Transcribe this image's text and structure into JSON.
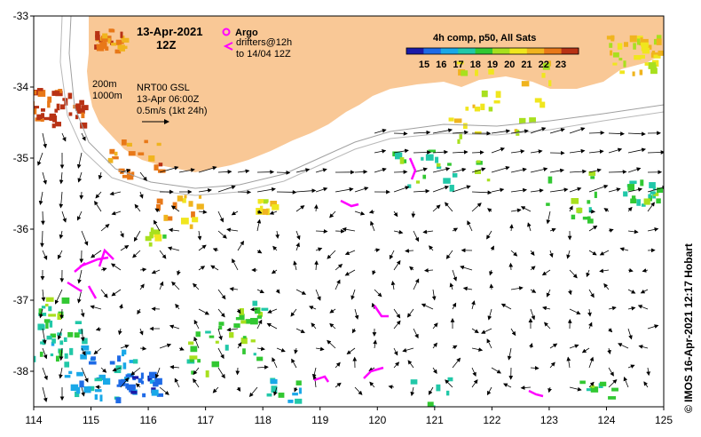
{
  "map": {
    "date_line1": "13-Apr-2021",
    "date_line2": "12Z",
    "product_line1": "NRT00 GSL",
    "product_line2": "13-Apr 06:00Z",
    "product_line3": "0.5m/s (1kt 24h)",
    "contour_200": "200m",
    "contour_1000": "1000m",
    "legend_argo": "Argo",
    "legend_drifters_line1": "drifters@12h",
    "legend_drifters_line2": "to 14/04 12Z",
    "credit": "© IMOS 16-Apr-2021 12:17 Hobart",
    "colorbar_title": "4h comp, p50, All Sats",
    "colorbar_ticks": [
      "15",
      "16",
      "17",
      "18",
      "19",
      "20",
      "21",
      "22",
      "23"
    ],
    "colorbar_colors": [
      "#1a1aa8",
      "#1e6ae6",
      "#19a8e8",
      "#21c8a8",
      "#32c832",
      "#a8e01e",
      "#f0e61e",
      "#f0b41e",
      "#e87818",
      "#b83214"
    ],
    "x_ticks": [
      "114",
      "115",
      "116",
      "117",
      "118",
      "119",
      "120",
      "121",
      "122",
      "123",
      "124",
      "125"
    ],
    "y_ticks": [
      "-33",
      "-34",
      "-35",
      "-36",
      "-37",
      "-38"
    ],
    "land_color": "#f9c896",
    "argo_color": "#ff00ff"
  }
}
